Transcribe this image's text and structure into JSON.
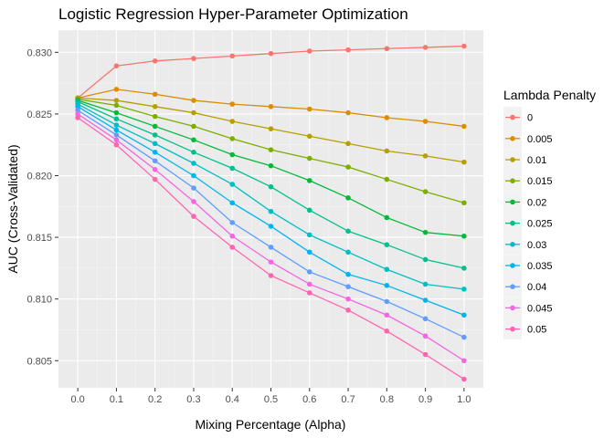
{
  "chart_data": {
    "type": "line",
    "title": "Logistic Regression Hyper-Parameter Optimization",
    "xlabel": "Mixing Percentage (Alpha)",
    "ylabel": "AUC (Cross-Validated)",
    "x": [
      0.0,
      0.1,
      0.2,
      0.3,
      0.4,
      0.5,
      0.6,
      0.7,
      0.8,
      0.9,
      1.0
    ],
    "x_tick_labels": [
      "0.0",
      "0.1",
      "0.2",
      "0.3",
      "0.4",
      "0.5",
      "0.6",
      "0.7",
      "0.8",
      "0.9",
      "1.0"
    ],
    "xlim": [
      -0.05,
      1.05
    ],
    "ylim": [
      0.8028,
      0.8318
    ],
    "y_ticks": [
      0.805,
      0.81,
      0.815,
      0.82,
      0.825,
      0.83
    ],
    "y_tick_labels": [
      "0.805",
      "0.810",
      "0.815",
      "0.820",
      "0.825",
      "0.830"
    ],
    "grid": true,
    "legend_title": "Lambda Penalty",
    "legend_position": "right",
    "series": [
      {
        "name": "0",
        "color": "#F8766D",
        "values": [
          0.8263,
          0.8289,
          0.8293,
          0.8295,
          0.8297,
          0.8299,
          0.8301,
          0.8302,
          0.8303,
          0.8304,
          0.8305
        ]
      },
      {
        "name": "0.005",
        "color": "#DE8C00",
        "values": [
          0.8263,
          0.827,
          0.8266,
          0.8261,
          0.8258,
          0.8256,
          0.8254,
          0.8251,
          0.8247,
          0.8244,
          0.824
        ]
      },
      {
        "name": "0.01",
        "color": "#B79F00",
        "values": [
          0.8263,
          0.8261,
          0.8256,
          0.8251,
          0.8244,
          0.8238,
          0.8232,
          0.8226,
          0.822,
          0.8216,
          0.8211
        ]
      },
      {
        "name": "0.015",
        "color": "#7CAE00",
        "values": [
          0.8262,
          0.8257,
          0.8248,
          0.824,
          0.823,
          0.8221,
          0.8214,
          0.8207,
          0.8197,
          0.8187,
          0.8178
        ]
      },
      {
        "name": "0.02",
        "color": "#00BA38",
        "values": [
          0.8261,
          0.8251,
          0.824,
          0.8229,
          0.8217,
          0.8208,
          0.8196,
          0.8182,
          0.8166,
          0.8154,
          0.8151
        ]
      },
      {
        "name": "0.025",
        "color": "#00C08B",
        "values": [
          0.826,
          0.8246,
          0.8233,
          0.8219,
          0.8206,
          0.8191,
          0.8172,
          0.8155,
          0.8144,
          0.8132,
          0.8125
        ]
      },
      {
        "name": "0.03",
        "color": "#00BFC4",
        "values": [
          0.8258,
          0.8241,
          0.8226,
          0.821,
          0.8193,
          0.8171,
          0.8152,
          0.8138,
          0.8124,
          0.8112,
          0.8108
        ]
      },
      {
        "name": "0.035",
        "color": "#00B4F0",
        "values": [
          0.8256,
          0.8237,
          0.8219,
          0.82,
          0.8178,
          0.8159,
          0.8138,
          0.812,
          0.8111,
          0.8099,
          0.8087
        ]
      },
      {
        "name": "0.04",
        "color": "#619CFF",
        "values": [
          0.8253,
          0.8233,
          0.8212,
          0.819,
          0.8162,
          0.8142,
          0.8122,
          0.811,
          0.8098,
          0.8084,
          0.8069
        ]
      },
      {
        "name": "0.045",
        "color": "#F564E3",
        "values": [
          0.825,
          0.8229,
          0.8205,
          0.8179,
          0.8151,
          0.813,
          0.8112,
          0.81,
          0.8087,
          0.807,
          0.805
        ]
      },
      {
        "name": "0.05",
        "color": "#FF64B0",
        "values": [
          0.8247,
          0.8225,
          0.8197,
          0.8167,
          0.8142,
          0.8119,
          0.8105,
          0.8091,
          0.8074,
          0.8055,
          0.8035
        ]
      }
    ]
  }
}
